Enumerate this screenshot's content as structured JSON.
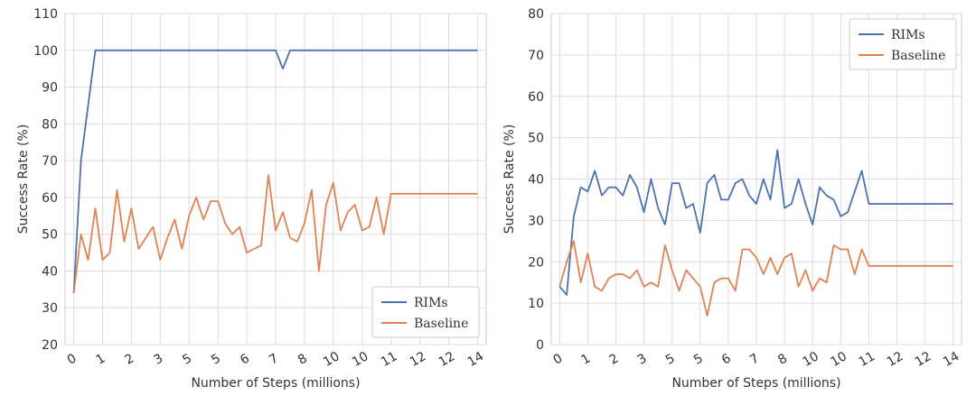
{
  "chart_data": [
    {
      "type": "line",
      "xlabel": "Number of Steps (millions)",
      "ylabel": "Success Rate (%)",
      "ylim": [
        20,
        110
      ],
      "yticks": [
        20,
        30,
        40,
        50,
        60,
        70,
        80,
        90,
        100,
        110
      ],
      "xlim": [
        -0.3,
        14.3
      ],
      "xticks": [
        0,
        1,
        2,
        3,
        4,
        5,
        6,
        7,
        8,
        9,
        10,
        11,
        12,
        13,
        14
      ],
      "xticklabels": [
        "0",
        "1",
        "2",
        "3",
        "5",
        "5",
        "6",
        "7",
        "8",
        "10",
        "10",
        "11",
        "12",
        "12",
        "14"
      ],
      "grid": true,
      "legend_position": "bottom-right",
      "series": [
        {
          "name": "RIMs",
          "color": "#4c72b0",
          "x": [
            0,
            0.25,
            0.5,
            0.75,
            1,
            1.25,
            1.5,
            1.75,
            2,
            2.25,
            2.5,
            2.75,
            3,
            3.25,
            3.5,
            3.75,
            4,
            4.25,
            4.5,
            4.75,
            5,
            5.25,
            5.5,
            5.75,
            6,
            6.25,
            6.5,
            6.75,
            7,
            7.25,
            7.5,
            7.75,
            8,
            8.25,
            8.5,
            8.75,
            9,
            9.25,
            9.5,
            9.75,
            10,
            10.25,
            10.5,
            10.75,
            11,
            11.25,
            11.5,
            11.75,
            12,
            12.25,
            12.5,
            12.75,
            13,
            13.25,
            13.5,
            13.75,
            14
          ],
          "y": [
            34,
            70,
            85,
            100,
            100,
            100,
            100,
            100,
            100,
            100,
            100,
            100,
            100,
            100,
            100,
            100,
            100,
            100,
            100,
            100,
            100,
            100,
            100,
            100,
            100,
            100,
            100,
            100,
            100,
            95,
            100,
            100,
            100,
            100,
            100,
            100,
            100,
            100,
            100,
            100,
            100,
            100,
            100,
            100,
            100,
            100,
            100,
            100,
            100,
            100,
            100,
            100,
            100,
            100,
            100,
            100,
            100
          ]
        },
        {
          "name": "Baseline",
          "color": "#dd8452",
          "x": [
            0,
            0.25,
            0.5,
            0.75,
            1,
            1.25,
            1.5,
            1.75,
            2,
            2.25,
            2.5,
            2.75,
            3,
            3.25,
            3.5,
            3.75,
            4,
            4.25,
            4.5,
            4.75,
            5,
            5.25,
            5.5,
            5.75,
            6,
            6.25,
            6.5,
            6.75,
            7,
            7.25,
            7.5,
            7.75,
            8,
            8.25,
            8.5,
            8.75,
            9,
            9.25,
            9.5,
            9.75,
            10,
            10.25,
            10.5,
            10.75,
            11,
            11.25,
            11.5,
            11.75,
            12,
            12.25,
            12.5,
            12.75,
            13,
            13.25,
            13.5,
            13.75,
            14
          ],
          "y": [
            34,
            50,
            43,
            57,
            43,
            45,
            62,
            48,
            57,
            46,
            49,
            52,
            43,
            49,
            54,
            46,
            55,
            60,
            54,
            59,
            59,
            53,
            50,
            52,
            45,
            46,
            47,
            66,
            51,
            56,
            49,
            48,
            53,
            62,
            40,
            58,
            64,
            51,
            56,
            58,
            51,
            52,
            60,
            50,
            61,
            61,
            61,
            61,
            61,
            61,
            61,
            61,
            61,
            61,
            61,
            61,
            61
          ]
        }
      ]
    },
    {
      "type": "line",
      "xlabel": "Number of Steps (millions)",
      "ylabel": "Success Rate (%)",
      "ylim": [
        0,
        80
      ],
      "yticks": [
        0,
        10,
        20,
        30,
        40,
        50,
        60,
        70,
        80
      ],
      "xlim": [
        -0.3,
        14.3
      ],
      "xticks": [
        0,
        1,
        2,
        3,
        4,
        5,
        6,
        7,
        8,
        9,
        10,
        11,
        12,
        13,
        14
      ],
      "xticklabels": [
        "0",
        "1",
        "2",
        "3",
        "5",
        "5",
        "6",
        "7",
        "8",
        "10",
        "10",
        "11",
        "12",
        "12",
        "14"
      ],
      "grid": true,
      "legend_position": "top-right",
      "series": [
        {
          "name": "RIMs",
          "color": "#4c72b0",
          "x": [
            0,
            0.25,
            0.5,
            0.75,
            1,
            1.25,
            1.5,
            1.75,
            2,
            2.25,
            2.5,
            2.75,
            3,
            3.25,
            3.5,
            3.75,
            4,
            4.25,
            4.5,
            4.75,
            5,
            5.25,
            5.5,
            5.75,
            6,
            6.25,
            6.5,
            6.75,
            7,
            7.25,
            7.5,
            7.75,
            8,
            8.25,
            8.5,
            8.75,
            9,
            9.25,
            9.5,
            9.75,
            10,
            10.25,
            10.5,
            10.75,
            11,
            11.25,
            11.5,
            11.75,
            12,
            12.25,
            12.5,
            12.75,
            13,
            13.25,
            13.5,
            13.75,
            14
          ],
          "y": [
            14,
            12,
            31,
            38,
            37,
            42,
            36,
            38,
            38,
            36,
            41,
            38,
            32,
            40,
            33,
            29,
            39,
            39,
            33,
            34,
            27,
            39,
            41,
            35,
            35,
            39,
            40,
            36,
            34,
            40,
            35,
            47,
            33,
            34,
            40,
            34,
            29,
            38,
            36,
            35,
            31,
            32,
            37,
            42,
            34,
            34,
            34,
            34,
            34,
            34,
            34,
            34,
            34,
            34,
            34,
            34,
            34
          ]
        },
        {
          "name": "Baseline",
          "color": "#dd8452",
          "x": [
            0,
            0.25,
            0.5,
            0.75,
            1,
            1.25,
            1.5,
            1.75,
            2,
            2.25,
            2.5,
            2.75,
            3,
            3.25,
            3.5,
            3.75,
            4,
            4.25,
            4.5,
            4.75,
            5,
            5.25,
            5.5,
            5.75,
            6,
            6.25,
            6.5,
            6.75,
            7,
            7.25,
            7.5,
            7.75,
            8,
            8.25,
            8.5,
            8.75,
            9,
            9.25,
            9.5,
            9.75,
            10,
            10.25,
            10.5,
            10.75,
            11,
            11.25,
            11.5,
            11.75,
            12,
            12.25,
            12.5,
            12.75,
            13,
            13.25,
            13.5,
            13.75,
            14
          ],
          "y": [
            14,
            20,
            25,
            15,
            22,
            14,
            13,
            16,
            17,
            17,
            16,
            18,
            14,
            15,
            14,
            24,
            18,
            13,
            18,
            16,
            14,
            7,
            15,
            16,
            16,
            13,
            23,
            23,
            21,
            17,
            21,
            17,
            21,
            22,
            14,
            18,
            13,
            16,
            15,
            24,
            23,
            23,
            17,
            23,
            19,
            19,
            19,
            19,
            19,
            19,
            19,
            19,
            19,
            19,
            19,
            19,
            19
          ]
        }
      ]
    }
  ]
}
